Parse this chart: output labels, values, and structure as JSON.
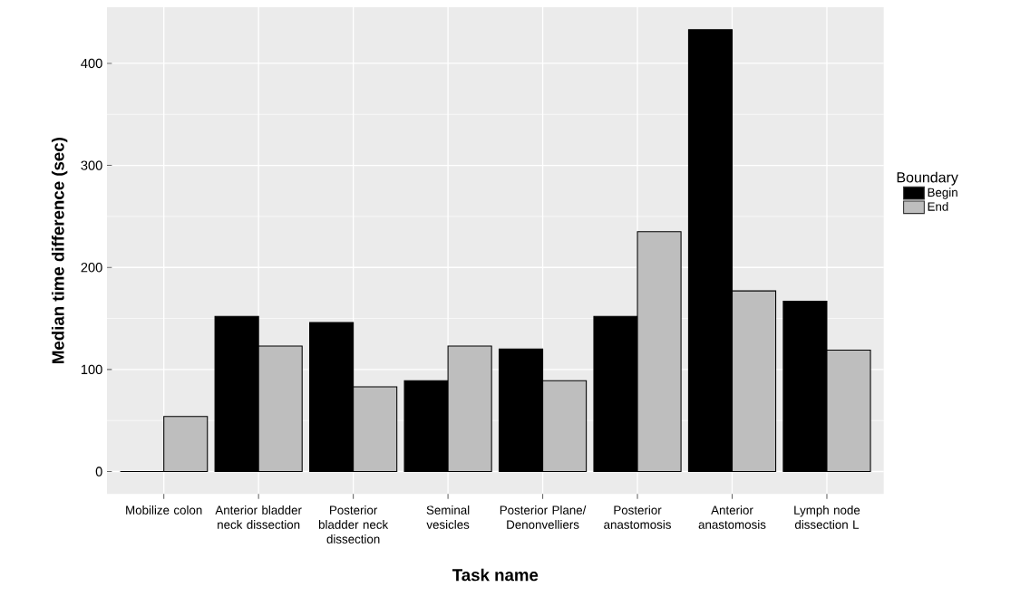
{
  "chart_data": {
    "type": "bar",
    "xlabel": "Task name",
    "ylabel": "Median time difference (sec)",
    "legend_title": "Boundary",
    "categories": [
      "Mobilize colon",
      "Anterior bladder neck dissection",
      "Posterior bladder neck dissection",
      "Seminal vesicles",
      "Posterior Plane/ Denonvelliers",
      "Posterior anastomosis",
      "Anterior anastomosis",
      "Lymph node dissection L"
    ],
    "series": [
      {
        "name": "Begin",
        "color": "#000000",
        "values": [
          0,
          152,
          146,
          89,
          120,
          152,
          433,
          167
        ]
      },
      {
        "name": "End",
        "color": "#bebebe",
        "values": [
          54,
          123,
          83,
          123,
          89,
          235,
          177,
          119
        ]
      }
    ],
    "ylim": [
      -22,
      455
    ],
    "yticks": [
      0,
      100,
      200,
      300,
      400
    ],
    "grid": true,
    "legend": "right"
  }
}
